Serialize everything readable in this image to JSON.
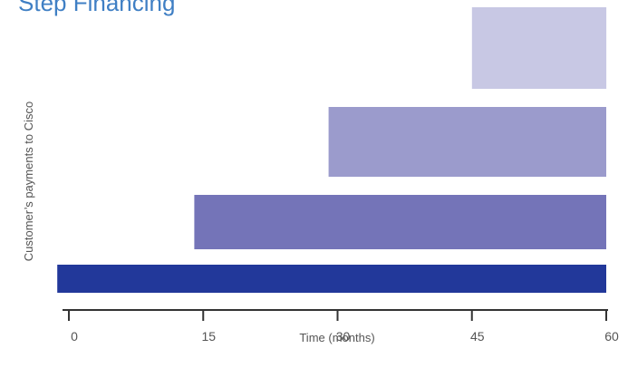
{
  "chart_data": {
    "type": "bar",
    "orientation": "horizontal",
    "title": "Step Financing",
    "xlabel": "Time (months)",
    "ylabel": "Customer’s payments to Cisco",
    "xlim": [
      0,
      60
    ],
    "xticks": [
      "0",
      "15",
      "30",
      "45",
      "60"
    ],
    "grid": false,
    "series": [
      {
        "start": 45,
        "end": 60,
        "color": "#c8c8e4"
      },
      {
        "start": 29,
        "end": 60,
        "color": "#9b9bcc"
      },
      {
        "start": 14,
        "end": 60,
        "color": "#7474b8"
      },
      {
        "start": -1.3,
        "end": 60,
        "color": "#22389a"
      }
    ]
  }
}
